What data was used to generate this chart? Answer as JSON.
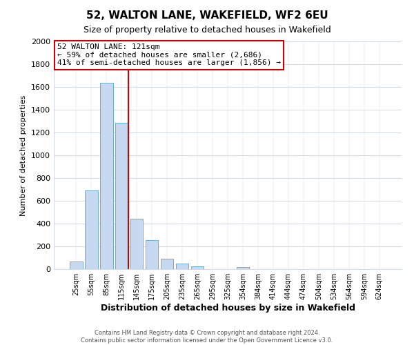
{
  "title": "52, WALTON LANE, WAKEFIELD, WF2 6EU",
  "subtitle": "Size of property relative to detached houses in Wakefield",
  "xlabel": "Distribution of detached houses by size in Wakefield",
  "ylabel": "Number of detached properties",
  "bar_labels": [
    "25sqm",
    "55sqm",
    "85sqm",
    "115sqm",
    "145sqm",
    "175sqm",
    "205sqm",
    "235sqm",
    "265sqm",
    "295sqm",
    "325sqm",
    "354sqm",
    "384sqm",
    "414sqm",
    "444sqm",
    "474sqm",
    "504sqm",
    "534sqm",
    "564sqm",
    "594sqm",
    "624sqm"
  ],
  "bar_heights": [
    65,
    690,
    1635,
    1285,
    440,
    255,
    90,
    50,
    25,
    0,
    0,
    20,
    0,
    0,
    0,
    0,
    0,
    0,
    0,
    0,
    0
  ],
  "bar_color": "#c6d9f0",
  "bar_edge_color": "#6baed6",
  "ylim": [
    0,
    2000
  ],
  "yticks": [
    0,
    200,
    400,
    600,
    800,
    1000,
    1200,
    1400,
    1600,
    1800,
    2000
  ],
  "vline_color": "#cc0000",
  "annotation_title": "52 WALTON LANE: 121sqm",
  "annotation_line1": "← 59% of detached houses are smaller (2,686)",
  "annotation_line2": "41% of semi-detached houses are larger (1,856) →",
  "annotation_box_color": "#ffffff",
  "annotation_box_edge": "#cc0000",
  "footer1": "Contains HM Land Registry data © Crown copyright and database right 2024.",
  "footer2": "Contains public sector information licensed under the Open Government Licence v3.0.",
  "background_color": "#ffffff",
  "plot_background": "#ffffff",
  "grid_color": "#d0d8e8"
}
